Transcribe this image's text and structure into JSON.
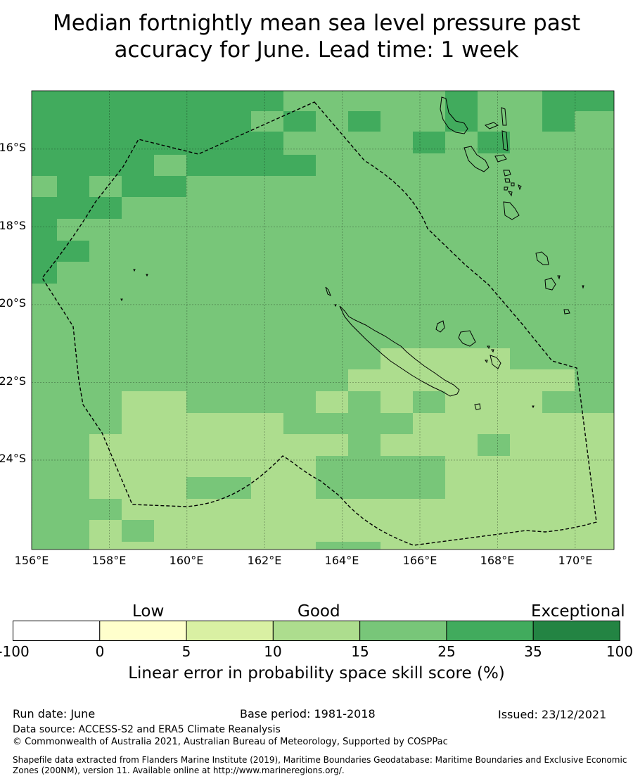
{
  "title": {
    "line1": "Median fortnightly mean sea level pressure past",
    "line2": "accuracy for June. Lead time: 1 week"
  },
  "map": {
    "lon_labels": [
      "156°E",
      "158°E",
      "160°E",
      "162°E",
      "164°E",
      "166°E",
      "168°E",
      "170°E"
    ],
    "lon_values": [
      156,
      158,
      160,
      162,
      164,
      166,
      168,
      170
    ],
    "lat_labels": [
      "16°S",
      "18°S",
      "20°S",
      "22°S",
      "24°S"
    ],
    "lat_values": [
      -16,
      -18,
      -20,
      -22,
      -24
    ],
    "extent": {
      "lon_min": 156,
      "lon_max": 171,
      "lat_min": -26.3,
      "lat_max": -14.5
    },
    "grid": "dashed gridlines every 2 degrees",
    "eez_boundary": "New Caledonia exclusive economic zone (dashed outline)"
  },
  "colorbar": {
    "category_labels": [
      "Low",
      "Good",
      "Exceptional"
    ],
    "ticks": [
      "-100",
      "0",
      "5",
      "10",
      "15",
      "25",
      "35",
      "100"
    ],
    "bin_colors": [
      "#ffffff",
      "#ffffcc",
      "#d9f0a3",
      "#addd8e",
      "#78c679",
      "#41ab5d",
      "#238443"
    ],
    "xlabel": "Linear error in probability space skill score (%)"
  },
  "footer": {
    "run_date": "Run date: June",
    "base_period": "Base period: 1981-2018",
    "issued": "Issued: 23/12/2021",
    "data_source": "Data source: ACCESS-S2 and ERA5 Climate Reanalysis",
    "copyright": "© Commonwealth of Australia 2021, Australian Bureau of Meteorology, Supported by COSPPac",
    "shapefile": "Shapefile data extracted from Flanders Marine Institute (2019), Maritime Boundaries Geodatabase: Maritime Boundaries and Exclusive Economic Zones (200NM), version 11. Available online at http://www.marineregions.org/."
  }
}
